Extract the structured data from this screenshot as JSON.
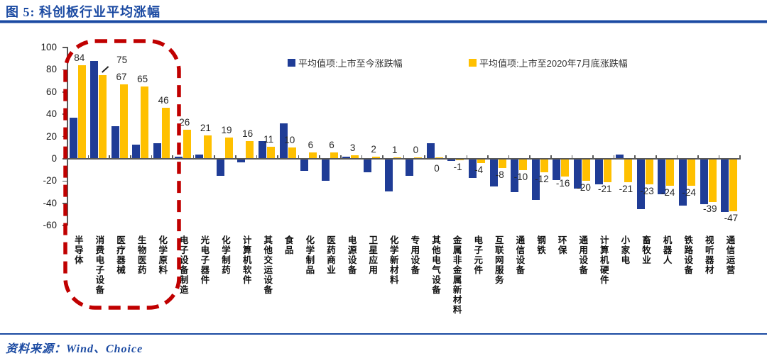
{
  "header": {
    "title": "图 5: 科创板行业平均涨幅"
  },
  "source": {
    "text": "资料来源：Wind、Choice"
  },
  "legend": [
    {
      "label": "平均值项:上市至今涨跌幅",
      "color": "#1f3c96"
    },
    {
      "label": "平均值项:上市至2020年7月底涨跌幅",
      "color": "#ffc000"
    }
  ],
  "colors": {
    "accent_blue": "#1b4aa2",
    "bar_blue": "#1f3c96",
    "bar_yellow": "#ffc000",
    "highlight_red": "#c00000",
    "axis_gray": "#595959"
  },
  "chart_data": {
    "type": "bar",
    "title": "图 5: 科创板行业平均涨幅",
    "categories": [
      "半导体",
      "消费电子设备",
      "医疗器械",
      "生物医药",
      "化学原料",
      "电子设备制造",
      "光电子器件",
      "化学制药",
      "计算机软件",
      "其他交运设备",
      "食品",
      "化学制品",
      "医药商业",
      "电源设备",
      "卫星应用",
      "化学新材料",
      "专用设备",
      "其他电气设备",
      "金属非金属新材料",
      "电子元件",
      "互联网服务",
      "通信设备",
      "钢铁",
      "环保",
      "通用设备",
      "计算机硬件",
      "小家电",
      "畜牧业",
      "机器人",
      "铁路设备",
      "视听器材",
      "通信运营"
    ],
    "series": [
      {
        "name": "平均值项:上市至今涨跌幅",
        "color": "#1f3c96",
        "values": [
          37,
          88,
          29,
          13,
          14,
          2,
          4,
          -15,
          -3,
          16,
          32,
          -11,
          -20,
          2,
          -12,
          -29,
          -15,
          14,
          -2,
          -17,
          -25,
          -30,
          -37,
          -19,
          -27,
          -23,
          4,
          -45,
          -32,
          -42,
          -41,
          -48
        ],
        "data_labels": false
      },
      {
        "name": "平均值项:上市至2020年7月底涨跌幅",
        "color": "#ffc000",
        "values": [
          84,
          75,
          67,
          65,
          46,
          26,
          21,
          19,
          16,
          11,
          10,
          6,
          6,
          3,
          2,
          1,
          0,
          0,
          -1,
          -4,
          -8,
          -10,
          -12,
          -16,
          -20,
          -21,
          -21,
          -23,
          -24,
          -24,
          -39,
          -47
        ],
        "data_labels": true
      }
    ],
    "yticks": [
      100,
      80,
      60,
      40,
      20,
      0,
      -20,
      -40,
      -60
    ],
    "ylim": [
      -60,
      100
    ],
    "grid": false,
    "legend_position": "top",
    "annotation": {
      "style": "red-dashed-rounded-rect",
      "highlight_categories": [
        "半导体",
        "消费电子设备",
        "医疗器械",
        "生物医药",
        "化学原料"
      ]
    }
  }
}
